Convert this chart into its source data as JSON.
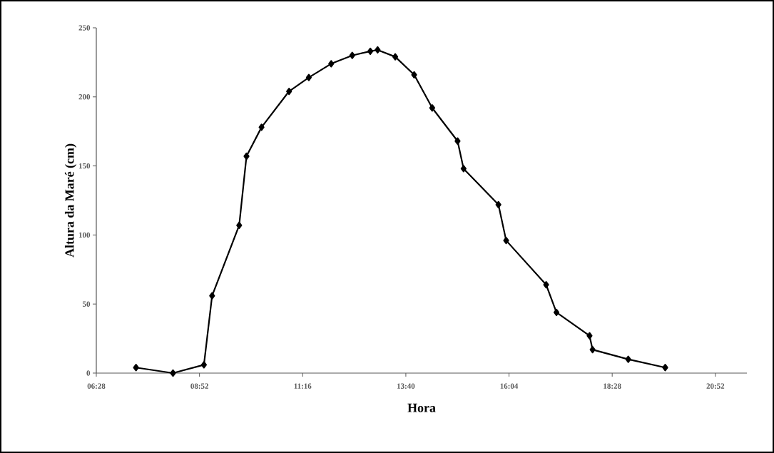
{
  "chart_data": {
    "type": "line",
    "xlabel": "Hora",
    "ylabel": "Altura da Maré (cm)",
    "x": [
      7.39,
      8.25,
      8.97,
      9.16,
      9.79,
      9.96,
      10.31,
      10.95,
      11.41,
      11.93,
      12.42,
      12.84,
      13.01,
      13.42,
      13.86,
      14.28,
      14.87,
      15.01,
      15.82,
      16.0,
      16.93,
      17.17,
      17.94,
      18.01,
      18.84,
      19.7
    ],
    "values": [
      4,
      0,
      6,
      56,
      107,
      157,
      178,
      204,
      214,
      224,
      230,
      233,
      234,
      229,
      216,
      192,
      168,
      148,
      122,
      96,
      64,
      44,
      27,
      17,
      10,
      4
    ],
    "color": "#000000",
    "marker": "diamond",
    "line_style": "solid",
    "grid": false,
    "xlim": [
      6.4667,
      21.6
    ],
    "xticks": [
      {
        "value": 6.4667,
        "label": "06:28"
      },
      {
        "value": 8.8667,
        "label": "08:52"
      },
      {
        "value": 11.2667,
        "label": "11:16"
      },
      {
        "value": 13.6667,
        "label": "13:40"
      },
      {
        "value": 16.0667,
        "label": "16:04"
      },
      {
        "value": 18.4667,
        "label": "18:28"
      },
      {
        "value": 20.8667,
        "label": "20:52"
      }
    ],
    "ylim": [
      0,
      250
    ],
    "yticks": [
      0,
      50,
      100,
      150,
      200,
      250
    ]
  }
}
